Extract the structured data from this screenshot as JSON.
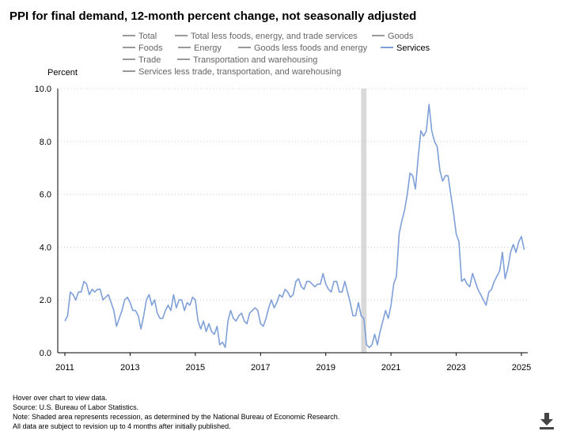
{
  "title": "PPI for final demand, 12-month percent change, not seasonally adjusted",
  "y_axis_label": "Percent",
  "legend": [
    {
      "name": "Total",
      "active": false
    },
    {
      "name": "Total less foods, energy, and trade services",
      "active": false
    },
    {
      "name": "Goods",
      "active": false
    },
    {
      "name": "Foods",
      "active": false
    },
    {
      "name": "Energy",
      "active": false
    },
    {
      "name": "Goods less foods and energy",
      "active": false
    },
    {
      "name": "Services",
      "active": true
    },
    {
      "name": "Trade",
      "active": false
    },
    {
      "name": "Transportation and warehousing",
      "active": false
    },
    {
      "name": "Services less trade, transportation, and warehousing",
      "active": false
    }
  ],
  "colors": {
    "services": "#7f9fd8",
    "inactive_legend": "#999999",
    "recession": "#d9d9d9",
    "grid": "#cccccc"
  },
  "notes": [
    "Hover over chart to view data.",
    "Source: U.S. Bureau of Labor Statistics.",
    "Note: Shaded area represents recession, as determined by the National Bureau of Economic Research.",
    "All data are subject to revision up to 4 months after initially published."
  ],
  "download_icon": "download-icon",
  "chart_data": {
    "type": "line",
    "title": "PPI for final demand, 12-month percent change, not seasonally adjusted",
    "ylabel": "Percent",
    "xlabel": "",
    "ylim": [
      0,
      10
    ],
    "yticks": [
      "0.0",
      "2.0",
      "4.0",
      "6.0",
      "8.0",
      "10.0"
    ],
    "xticks": [
      "2011",
      "2013",
      "2015",
      "2017",
      "2019",
      "2021",
      "2023",
      "2025"
    ],
    "grid": true,
    "recession": {
      "start": "2020-02",
      "end": "2020-04"
    },
    "series": [
      {
        "name": "Services",
        "start": "2011-01",
        "frequency": "monthly",
        "values": [
          1.2,
          1.4,
          2.3,
          2.2,
          2.0,
          2.3,
          2.3,
          2.7,
          2.6,
          2.2,
          2.4,
          2.3,
          2.4,
          2.4,
          2.0,
          2.1,
          2.2,
          1.9,
          1.6,
          1.0,
          1.3,
          1.6,
          2.0,
          2.1,
          1.9,
          1.6,
          1.6,
          1.4,
          0.9,
          1.4,
          2.0,
          2.2,
          1.8,
          2.0,
          1.5,
          1.3,
          1.3,
          1.6,
          1.8,
          1.6,
          2.2,
          1.7,
          2.0,
          2.0,
          1.6,
          1.9,
          1.8,
          2.1,
          2.0,
          1.2,
          0.9,
          1.2,
          0.8,
          1.1,
          0.8,
          0.7,
          1.0,
          0.3,
          0.4,
          0.2,
          1.2,
          1.6,
          1.3,
          1.2,
          1.4,
          1.5,
          1.2,
          1.1,
          1.5,
          1.6,
          1.7,
          1.6,
          1.1,
          1.0,
          1.3,
          1.7,
          2.0,
          1.7,
          1.9,
          2.2,
          2.1,
          2.4,
          2.3,
          2.1,
          2.2,
          2.7,
          2.8,
          2.5,
          2.4,
          2.7,
          2.7,
          2.6,
          2.5,
          2.6,
          2.6,
          3.0,
          2.6,
          2.4,
          2.3,
          2.7,
          2.7,
          2.3,
          2.3,
          2.7,
          2.3,
          1.9,
          1.4,
          1.4,
          1.9,
          1.4,
          1.3,
          0.3,
          0.2,
          0.3,
          0.7,
          0.3,
          0.8,
          1.2,
          1.6,
          1.3,
          1.8,
          2.6,
          2.9,
          4.5,
          5.0,
          5.4,
          6.0,
          6.8,
          6.7,
          6.2,
          7.4,
          8.4,
          8.2,
          8.4,
          9.4,
          8.4,
          8.0,
          7.8,
          6.9,
          6.5,
          6.7,
          6.7,
          6.0,
          5.3,
          4.5,
          4.2,
          2.7,
          2.8,
          2.6,
          2.5,
          3.0,
          2.7,
          2.4,
          2.2,
          2.0,
          1.8,
          2.3,
          2.4,
          2.7,
          2.9,
          3.1,
          3.8,
          2.8,
          3.2,
          3.8,
          4.1,
          3.8,
          4.2,
          4.4,
          3.9
        ]
      }
    ]
  }
}
